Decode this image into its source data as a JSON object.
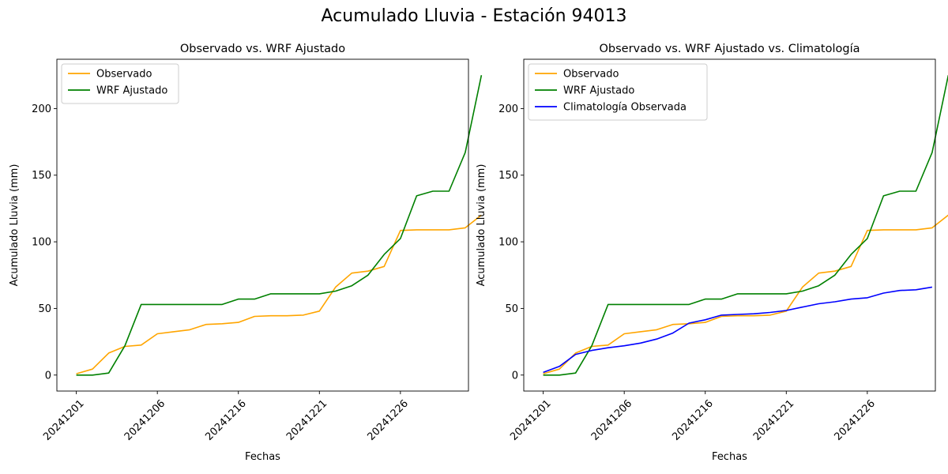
{
  "figure": {
    "suptitle": "Acumulado Lluvia - Estación 94013"
  },
  "chart_data": [
    {
      "type": "line",
      "title": "Observado vs. WRF Ajustado",
      "xlabel": "Fechas",
      "ylabel": "Acumulado Lluvia (mm)",
      "x": [
        "20241201",
        "20241202",
        "20241203",
        "20241204",
        "20241205",
        "20241206",
        "20241207",
        "20241208",
        "20241209",
        "20241210",
        "20241211",
        "20241212",
        "20241213",
        "20241214",
        "20241215",
        "20241216",
        "20241217",
        "20241218",
        "20241219",
        "20241220",
        "20241221",
        "20241222",
        "20241223",
        "20241224",
        "20241225",
        "20241226",
        "20241227",
        "20241228",
        "20241229",
        "20241230"
      ],
      "xticks": [
        "20241201",
        "20241206",
        "20241216",
        "20241221",
        "20241226"
      ],
      "yticks": [
        0,
        50,
        100,
        150,
        200
      ],
      "ylim": [
        -12,
        237
      ],
      "grid": false,
      "legend_position": "upper left",
      "series": [
        {
          "name": "Observado",
          "color": "#FFA500",
          "values": [
            1,
            4.5,
            16.5,
            21.5,
            22.5,
            31,
            32.5,
            34,
            38,
            38.5,
            39.5,
            44,
            44.5,
            44.5,
            45,
            48,
            66,
            76.5,
            78,
            81.5,
            108.5,
            109,
            109,
            109,
            110.5,
            120,
            null,
            null,
            null,
            null
          ]
        },
        {
          "name": "WRF Ajustado",
          "color": "#008000",
          "values": [
            0,
            0,
            1.5,
            22,
            53,
            53,
            53,
            53,
            53,
            53,
            57,
            57,
            61,
            61,
            61,
            61,
            63,
            67,
            75,
            90.5,
            102.5,
            134.5,
            138,
            138,
            167,
            225,
            null,
            null,
            null,
            null
          ]
        }
      ]
    },
    {
      "type": "line",
      "title": "Observado vs. WRF Ajustado vs. Climatología",
      "xlabel": "Fechas",
      "ylabel": "Acumulado Lluvia (mm)",
      "x": [
        "20241201",
        "20241202",
        "20241203",
        "20241204",
        "20241205",
        "20241206",
        "20241207",
        "20241208",
        "20241209",
        "20241210",
        "20241211",
        "20241212",
        "20241213",
        "20241214",
        "20241215",
        "20241216",
        "20241217",
        "20241218",
        "20241219",
        "20241220",
        "20241221",
        "20241222",
        "20241223",
        "20241224",
        "20241225",
        "20241226",
        "20241227",
        "20241228",
        "20241229",
        "20241230"
      ],
      "xticks": [
        "20241201",
        "20241206",
        "20241216",
        "20241221",
        "20241226"
      ],
      "yticks": [
        0,
        50,
        100,
        150,
        200
      ],
      "ylim": [
        -12,
        237
      ],
      "grid": false,
      "legend_position": "upper left",
      "series": [
        {
          "name": "Observado",
          "color": "#FFA500",
          "values": [
            1,
            4.5,
            16.5,
            21.5,
            22.5,
            31,
            32.5,
            34,
            38,
            38.5,
            39.5,
            44,
            44.5,
            44.5,
            45,
            48,
            66,
            76.5,
            78,
            81.5,
            108.5,
            109,
            109,
            109,
            110.5,
            120,
            null,
            null,
            null,
            null
          ]
        },
        {
          "name": "WRF Ajustado",
          "color": "#008000",
          "values": [
            0,
            0,
            1.5,
            22,
            53,
            53,
            53,
            53,
            53,
            53,
            57,
            57,
            61,
            61,
            61,
            61,
            63,
            67,
            75,
            90.5,
            102.5,
            134.5,
            138,
            138,
            167,
            225,
            null,
            null,
            null,
            null
          ]
        },
        {
          "name": "Climatología Observada",
          "color": "#0000FF",
          "values": [
            2,
            6.5,
            15.5,
            18.5,
            20.5,
            22,
            24,
            27,
            31.5,
            39,
            41.5,
            45,
            45.5,
            46,
            47,
            48.5,
            51,
            53.5,
            55,
            57,
            58,
            61.5,
            63.5,
            64,
            66,
            null,
            null,
            null,
            null,
            null
          ]
        }
      ]
    }
  ]
}
